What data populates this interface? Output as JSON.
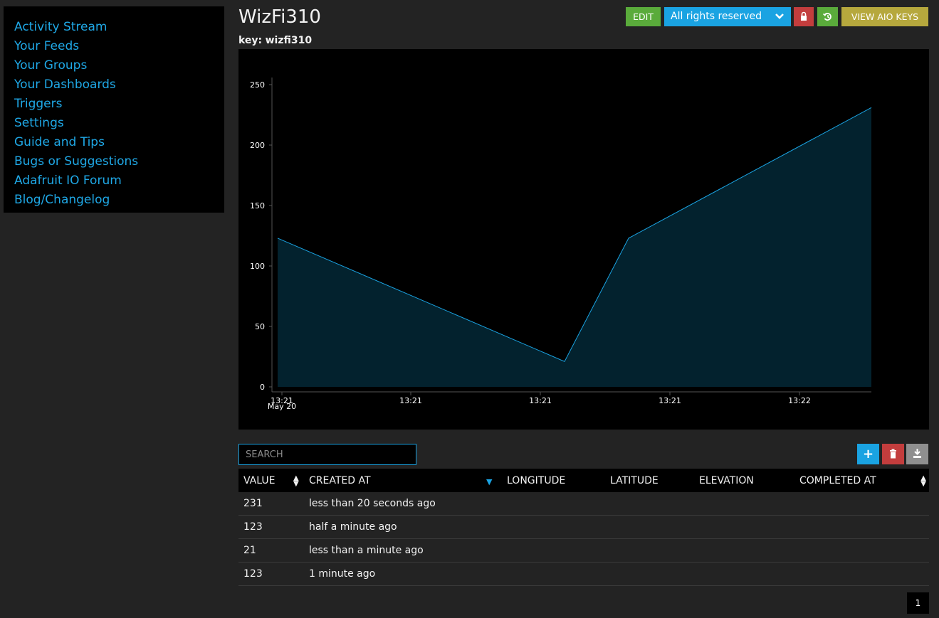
{
  "sidebar": {
    "items": [
      {
        "label": "Activity Stream"
      },
      {
        "label": "Your Feeds"
      },
      {
        "label": "Your Groups"
      },
      {
        "label": "Your Dashboards"
      },
      {
        "label": "Triggers"
      },
      {
        "label": "Settings"
      },
      {
        "label": "Guide and Tips"
      },
      {
        "label": "Bugs or Suggestions"
      },
      {
        "label": "Adafruit IO Forum"
      },
      {
        "label": "Blog/Changelog"
      }
    ]
  },
  "feed": {
    "title": "WizFi310",
    "key_label": "key:",
    "key_value": "wizfi310"
  },
  "toolbar": {
    "edit_label": "EDIT",
    "license_label": "All rights reserved",
    "license_icon": "chevron-down-icon",
    "lock_icon": "lock-icon",
    "history_icon": "history-icon",
    "keys_label": "VIEW AIO KEYS"
  },
  "colors": {
    "accent": "#1aa3e2",
    "green": "#5aab3b",
    "red": "#c33d3d",
    "olive": "#b6a83d",
    "chart_fill": "#03222e",
    "chart_line": "#1aa3e2"
  },
  "chart_data": {
    "type": "area",
    "y_ticks": [
      0,
      50,
      100,
      150,
      200,
      250
    ],
    "ylim": [
      0,
      250
    ],
    "x_ticks": [
      "13:21",
      "13:21",
      "13:21",
      "13:21",
      "13:22"
    ],
    "x_tick_sub": "May 20",
    "series": [
      {
        "values": [
          123,
          21,
          123,
          231
        ]
      }
    ]
  },
  "data_table": {
    "search_placeholder": "SEARCH",
    "add_icon": "plus-icon",
    "delete_icon": "trash-icon",
    "download_icon": "download-icon",
    "columns": [
      "VALUE",
      "CREATED AT",
      "LONGITUDE",
      "LATITUDE",
      "ELEVATION",
      "COMPLETED AT"
    ],
    "rows": [
      {
        "value": "231",
        "created_at": "less than 20 seconds ago"
      },
      {
        "value": "123",
        "created_at": "half a minute ago"
      },
      {
        "value": "21",
        "created_at": "less than a minute ago"
      },
      {
        "value": "123",
        "created_at": "1 minute ago"
      }
    ]
  },
  "pagination": {
    "current_page": "1"
  }
}
